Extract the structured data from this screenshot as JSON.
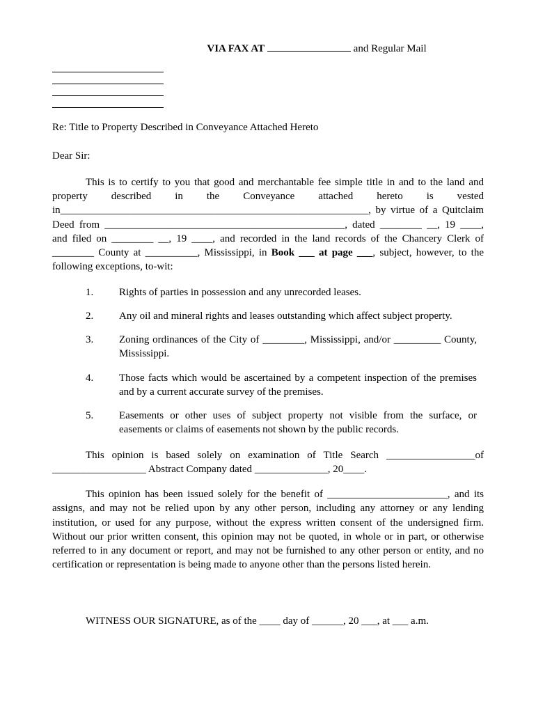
{
  "header": {
    "via_fax_label": "VIA FAX AT",
    "and_regular_mail": " and Regular Mail"
  },
  "re_line": "Re:  Title to Property Described in Conveyance Attached Hereto",
  "salutation": "Dear Sir:",
  "para1_a": "This is to certify to you that good and merchantable fee simple title in and to the land and property described in the Conveyance attached hereto is vested in___________________________________________________________, by virtue of a Quitclaim Deed from ______________________________________________, dated ________ __, 19 ____, and filed on ________ __, 19 ____, and recorded in the land records of the Chancery Clerk of ________ County at __________, Mississippi, in ",
  "para1_bold": "Book ___ at page ___",
  "para1_b": ", subject, however, to the following exceptions, to-wit:",
  "exceptions": [
    {
      "num": "1.",
      "text": "Rights of parties in possession and any unrecorded leases."
    },
    {
      "num": "2.",
      "text": "Any oil and mineral rights and leases outstanding which affect subject property."
    },
    {
      "num": "3.",
      "text": "Zoning ordinances of the City of ________, Mississippi, and/or _________ County, Mississippi."
    },
    {
      "num": "4.",
      "text": "Those facts which would be ascertained by a competent inspection of the premises and by a current accurate survey of the premises."
    },
    {
      "num": "5.",
      "text": "Easements or other uses of subject property not visible from the surface, or easements or claims of easements not shown by the public records."
    }
  ],
  "para2": "This opinion is based solely on examination of Title Search _________________of __________________ Abstract Company dated ______________, 20____.",
  "para3": "This opinion has been issued solely for the benefit of _______________________, and its assigns, and may not be relied upon by any other person, including any attorney or any lending institution, or used for any purpose, without the express written consent of the undersigned firm.  Without our prior written consent, this opinion may not be quoted, in whole or in part, or otherwise referred to in any document or report, and may not be furnished to any other person or entity, and no certification or representation is being made to anyone other than the persons listed herein.",
  "witness": "WITNESS OUR SIGNATURE, as of the ____ day of ______, 20 ___, at ___ a.m."
}
